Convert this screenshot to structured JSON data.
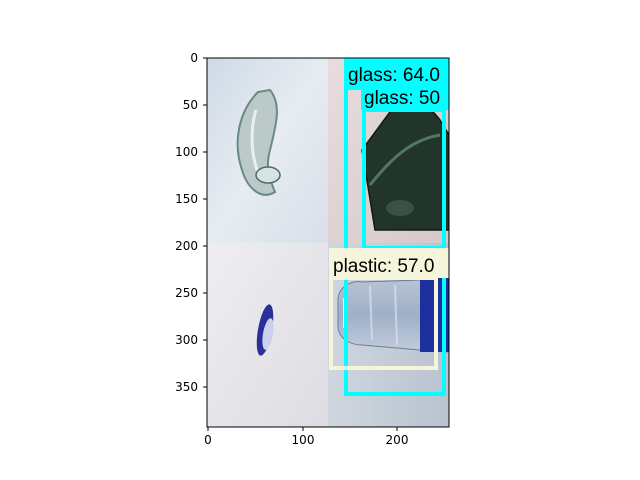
{
  "figure": {
    "x_ticks": [
      "0",
      "100",
      "200"
    ],
    "y_ticks": [
      "0",
      "50",
      "100",
      "150",
      "200",
      "250",
      "300",
      "350"
    ],
    "x_range": [
      0,
      256
    ],
    "y_range": [
      0,
      392
    ]
  },
  "tiles": [
    {
      "id": "glass-shard",
      "description_icon": "glass-shard-photo"
    },
    {
      "id": "green-bottle",
      "description_icon": "green-bottle-photo"
    },
    {
      "id": "bottle-cap",
      "description_icon": "blue-cap-photo"
    },
    {
      "id": "plastic-bottle",
      "description_icon": "plastic-bottle-photo"
    }
  ],
  "detections": [
    {
      "label": "glass: 64.0",
      "display": "glass: 64.0",
      "class": "glass",
      "score": 64.0,
      "color": "#00ffff"
    },
    {
      "label": "glass: 50",
      "display": "glass: 50",
      "class": "glass",
      "score": 50,
      "color": "#00ffff"
    },
    {
      "label": "plastic: 57.0",
      "display": "plastic: 57.0",
      "class": "plastic",
      "score": 57.0,
      "color": "#f5f5dc"
    }
  ],
  "colors": {
    "glass_box": "#00ffff",
    "plastic_box": "#f5f5dc",
    "axes": "#000000"
  }
}
